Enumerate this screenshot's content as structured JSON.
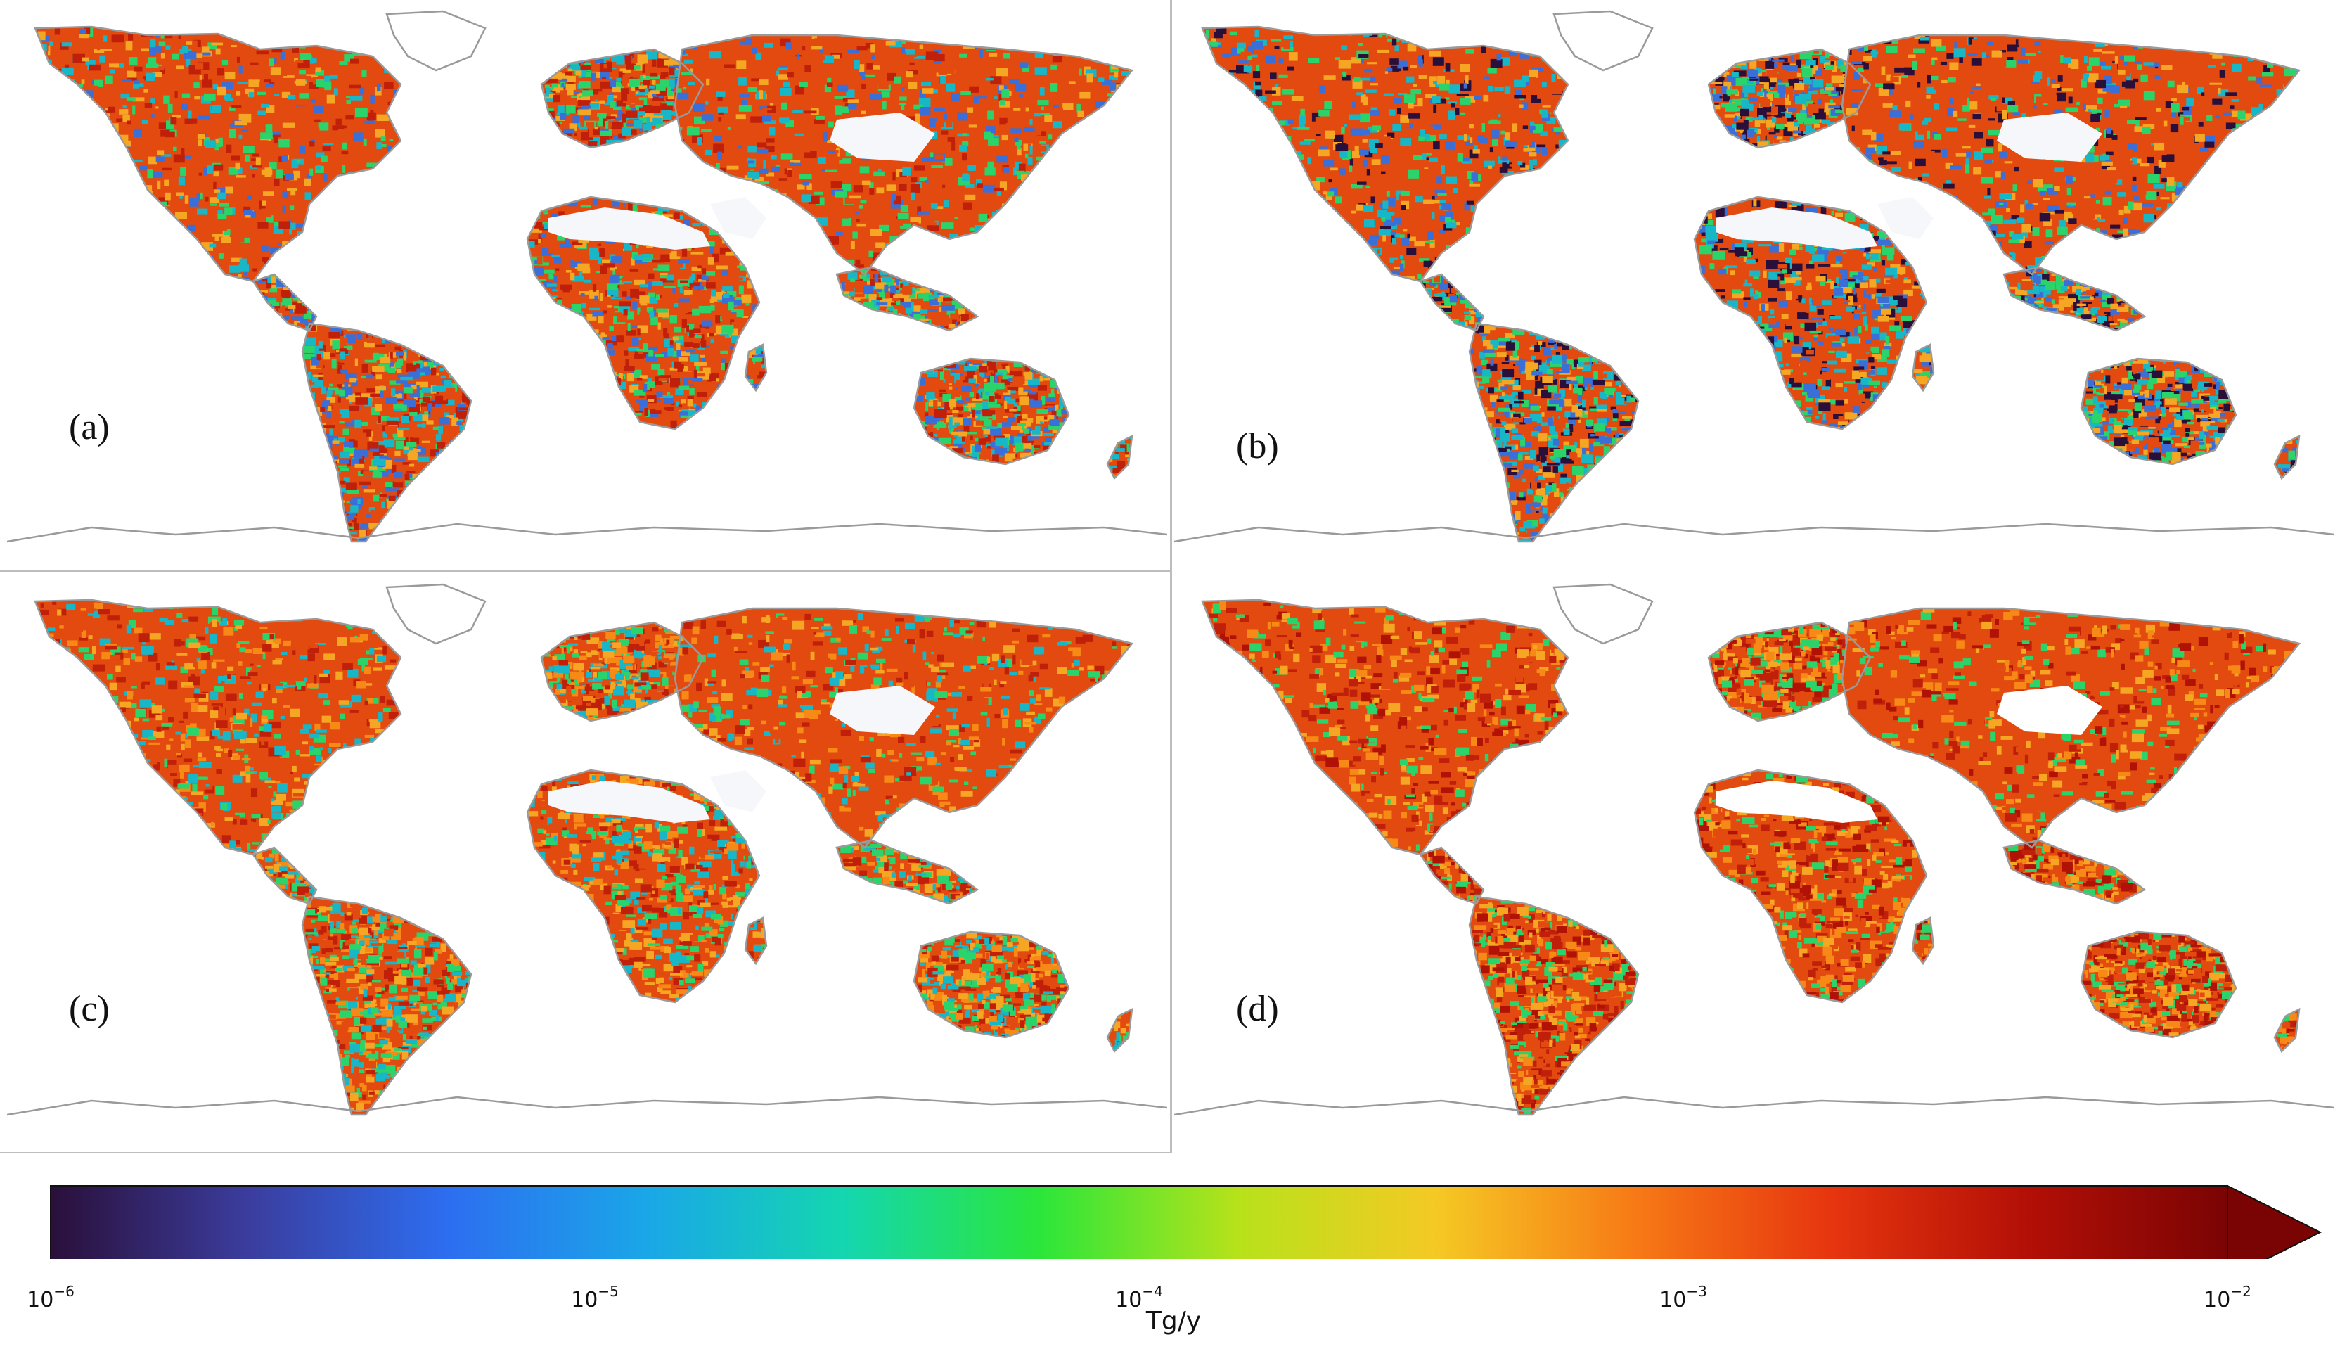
{
  "panels": [
    {
      "id": "a",
      "label": "(a)"
    },
    {
      "id": "b",
      "label": "(b)"
    },
    {
      "id": "c",
      "label": "(c)"
    },
    {
      "id": "d",
      "label": "(d)"
    }
  ],
  "colorbar": {
    "scale": "log",
    "min": "1e-6",
    "max": "1e-2",
    "extend": "max",
    "colormap": "turbo",
    "colors": [
      "#2a0f3a",
      "#3b3d9e",
      "#2d6df0",
      "#1aa6e8",
      "#14d6b0",
      "#2be63a",
      "#b7e21a",
      "#f5c924",
      "#f77a16",
      "#e6350f",
      "#b20f06",
      "#7a0404"
    ],
    "ticks": [
      {
        "base": "10",
        "exp": "−6"
      },
      {
        "base": "10",
        "exp": "−5"
      },
      {
        "base": "10",
        "exp": "−4"
      },
      {
        "base": "10",
        "exp": "−3"
      },
      {
        "base": "10",
        "exp": "−2"
      }
    ],
    "unit": "Tg/y"
  },
  "map_style": {
    "coastline": "#9a9a9a",
    "land_palettes": {
      "a": [
        "#e24a10",
        "#c0200a",
        "#f5a623",
        "#2bd46a",
        "#18b7c7",
        "#3b6fd8"
      ],
      "b": [
        "#e24a10",
        "#2bd46a",
        "#18b7c7",
        "#3b6fd8",
        "#f5a623",
        "#2a0f3a"
      ],
      "c": [
        "#e24a10",
        "#c0200a",
        "#f5a623",
        "#2bd46a",
        "#18b7c7",
        "#f78a16"
      ],
      "d": [
        "#e24a10",
        "#c0200a",
        "#b01206",
        "#f5a623",
        "#2bd46a",
        "#f78a16"
      ]
    }
  }
}
